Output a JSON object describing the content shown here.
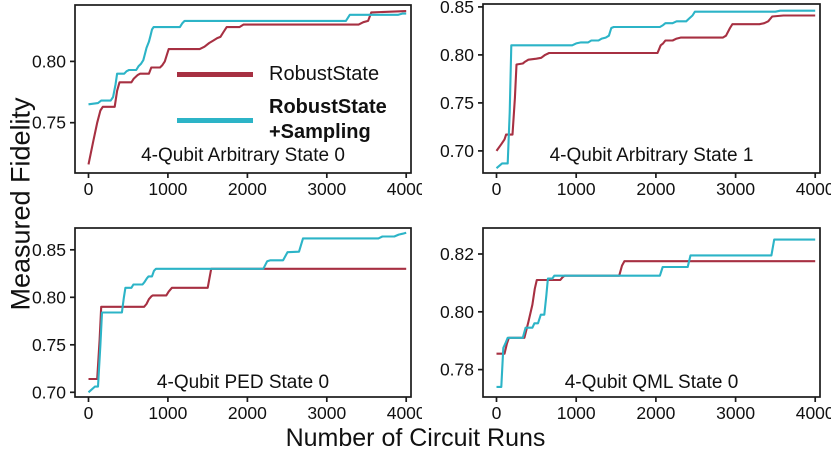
{
  "figure": {
    "ylabel": "Measured Fidelity",
    "xlabel": "Number of Circuit Runs"
  },
  "colors": {
    "axis": "#1a1a1a",
    "text": "#111111",
    "robust": "#a73042",
    "sampling": "#2cb4c7"
  },
  "legend": {
    "position": "inside top-left subplot",
    "entries": [
      {
        "label": "RobustState",
        "series": "robust",
        "bold": false
      },
      {
        "label_line1": "RobustState",
        "label_line2": "+Sampling",
        "series": "sampling",
        "bold": true
      }
    ]
  },
  "chart_data": [
    {
      "type": "line",
      "title": "4-Qubit Arbitrary State 0",
      "xlim": [
        -170,
        4060
      ],
      "ylim": [
        0.709,
        0.846
      ],
      "xticks": [
        0,
        1000,
        2000,
        3000,
        4000
      ],
      "yticks": [
        0.75,
        0.8
      ],
      "grid": false,
      "series": [
        {
          "name": "RobustState",
          "color": "robust",
          "points": [
            [
              0,
              0.716
            ],
            [
              60,
              0.735
            ],
            [
              110,
              0.75
            ],
            [
              150,
              0.76
            ],
            [
              180,
              0.763
            ],
            [
              330,
              0.763
            ],
            [
              360,
              0.776
            ],
            [
              390,
              0.783
            ],
            [
              540,
              0.783
            ],
            [
              570,
              0.786
            ],
            [
              620,
              0.789
            ],
            [
              650,
              0.79
            ],
            [
              760,
              0.79
            ],
            [
              790,
              0.795
            ],
            [
              900,
              0.795
            ],
            [
              930,
              0.797
            ],
            [
              960,
              0.8
            ],
            [
              990,
              0.806
            ],
            [
              1010,
              0.81
            ],
            [
              1400,
              0.81
            ],
            [
              1460,
              0.812
            ],
            [
              1520,
              0.815
            ],
            [
              1570,
              0.817
            ],
            [
              1620,
              0.819
            ],
            [
              1660,
              0.82
            ],
            [
              1700,
              0.824
            ],
            [
              1740,
              0.828
            ],
            [
              1900,
              0.828
            ],
            [
              1950,
              0.83
            ],
            [
              3400,
              0.83
            ],
            [
              3460,
              0.832
            ],
            [
              3520,
              0.833
            ],
            [
              3560,
              0.84
            ],
            [
              4000,
              0.841
            ]
          ]
        },
        {
          "name": "RobustState+Sampling",
          "color": "sampling",
          "points": [
            [
              0,
              0.765
            ],
            [
              120,
              0.766
            ],
            [
              160,
              0.768
            ],
            [
              280,
              0.768
            ],
            [
              310,
              0.771
            ],
            [
              340,
              0.781
            ],
            [
              360,
              0.79
            ],
            [
              450,
              0.79
            ],
            [
              480,
              0.792
            ],
            [
              510,
              0.793
            ],
            [
              600,
              0.793
            ],
            [
              630,
              0.796
            ],
            [
              660,
              0.798
            ],
            [
              690,
              0.801
            ],
            [
              710,
              0.806
            ],
            [
              730,
              0.811
            ],
            [
              760,
              0.816
            ],
            [
              780,
              0.821
            ],
            [
              800,
              0.826
            ],
            [
              820,
              0.828
            ],
            [
              1150,
              0.828
            ],
            [
              1180,
              0.831
            ],
            [
              1210,
              0.833
            ],
            [
              3240,
              0.833
            ],
            [
              3290,
              0.838
            ],
            [
              3900,
              0.838
            ],
            [
              3950,
              0.839
            ],
            [
              4000,
              0.839
            ]
          ]
        }
      ]
    },
    {
      "type": "line",
      "title": "4-Qubit Arbitrary State 1",
      "xlim": [
        -170,
        4060
      ],
      "ylim": [
        0.677,
        0.853
      ],
      "xticks": [
        0,
        1000,
        2000,
        3000,
        4000
      ],
      "yticks": [
        0.7,
        0.75,
        0.8,
        0.85
      ],
      "grid": false,
      "series": [
        {
          "name": "RobustState",
          "color": "robust",
          "points": [
            [
              0,
              0.7
            ],
            [
              60,
              0.707
            ],
            [
              100,
              0.712
            ],
            [
              120,
              0.717
            ],
            [
              200,
              0.717
            ],
            [
              230,
              0.755
            ],
            [
              250,
              0.79
            ],
            [
              330,
              0.791
            ],
            [
              360,
              0.793
            ],
            [
              400,
              0.795
            ],
            [
              500,
              0.796
            ],
            [
              560,
              0.797
            ],
            [
              610,
              0.8
            ],
            [
              660,
              0.802
            ],
            [
              2020,
              0.802
            ],
            [
              2060,
              0.81
            ],
            [
              2090,
              0.812
            ],
            [
              2120,
              0.815
            ],
            [
              2210,
              0.815
            ],
            [
              2260,
              0.817
            ],
            [
              2310,
              0.818
            ],
            [
              2840,
              0.818
            ],
            [
              2880,
              0.82
            ],
            [
              2930,
              0.828
            ],
            [
              2960,
              0.832
            ],
            [
              3300,
              0.832
            ],
            [
              3360,
              0.833
            ],
            [
              3410,
              0.835
            ],
            [
              3460,
              0.84
            ],
            [
              3600,
              0.841
            ],
            [
              4000,
              0.841
            ]
          ]
        },
        {
          "name": "RobustState+Sampling",
          "color": "sampling",
          "points": [
            [
              0,
              0.682
            ],
            [
              70,
              0.687
            ],
            [
              140,
              0.687
            ],
            [
              165,
              0.74
            ],
            [
              185,
              0.81
            ],
            [
              950,
              0.81
            ],
            [
              1000,
              0.812
            ],
            [
              1060,
              0.813
            ],
            [
              1150,
              0.813
            ],
            [
              1190,
              0.815
            ],
            [
              1280,
              0.815
            ],
            [
              1320,
              0.817
            ],
            [
              1370,
              0.818
            ],
            [
              1410,
              0.82
            ],
            [
              1440,
              0.828
            ],
            [
              1470,
              0.829
            ],
            [
              2050,
              0.829
            ],
            [
              2090,
              0.831
            ],
            [
              2120,
              0.833
            ],
            [
              2210,
              0.833
            ],
            [
              2260,
              0.835
            ],
            [
              2380,
              0.835
            ],
            [
              2420,
              0.838
            ],
            [
              2460,
              0.841
            ],
            [
              2490,
              0.845
            ],
            [
              3500,
              0.845
            ],
            [
              3560,
              0.846
            ],
            [
              4000,
              0.846
            ]
          ]
        }
      ]
    },
    {
      "type": "line",
      "title": "4-Qubit PED State 0",
      "xlim": [
        -170,
        4060
      ],
      "ylim": [
        0.695,
        0.873
      ],
      "xticks": [
        0,
        1000,
        2000,
        3000,
        4000
      ],
      "yticks": [
        0.7,
        0.75,
        0.8,
        0.85
      ],
      "grid": false,
      "series": [
        {
          "name": "RobustState",
          "color": "robust",
          "points": [
            [
              0,
              0.714
            ],
            [
              110,
              0.714
            ],
            [
              140,
              0.755
            ],
            [
              160,
              0.79
            ],
            [
              700,
              0.79
            ],
            [
              730,
              0.793
            ],
            [
              760,
              0.798
            ],
            [
              790,
              0.801
            ],
            [
              810,
              0.802
            ],
            [
              980,
              0.802
            ],
            [
              1010,
              0.806
            ],
            [
              1050,
              0.81
            ],
            [
              1500,
              0.81
            ],
            [
              1545,
              0.83
            ],
            [
              4000,
              0.83
            ]
          ]
        },
        {
          "name": "RobustState+Sampling",
          "color": "sampling",
          "points": [
            [
              0,
              0.7
            ],
            [
              80,
              0.706
            ],
            [
              120,
              0.706
            ],
            [
              150,
              0.75
            ],
            [
              170,
              0.784
            ],
            [
              420,
              0.784
            ],
            [
              445,
              0.8
            ],
            [
              465,
              0.81
            ],
            [
              540,
              0.81
            ],
            [
              565,
              0.8135
            ],
            [
              680,
              0.8135
            ],
            [
              705,
              0.816
            ],
            [
              735,
              0.82
            ],
            [
              755,
              0.822
            ],
            [
              800,
              0.822
            ],
            [
              825,
              0.828
            ],
            [
              850,
              0.83
            ],
            [
              2200,
              0.83
            ],
            [
              2250,
              0.838
            ],
            [
              2290,
              0.839
            ],
            [
              2450,
              0.839
            ],
            [
              2505,
              0.8475
            ],
            [
              2650,
              0.848
            ],
            [
              2700,
              0.862
            ],
            [
              3650,
              0.862
            ],
            [
              3700,
              0.864
            ],
            [
              3850,
              0.864
            ],
            [
              3905,
              0.866
            ],
            [
              3955,
              0.867
            ],
            [
              4000,
              0.868
            ]
          ]
        }
      ]
    },
    {
      "type": "line",
      "title": "4-Qubit QML State 0",
      "xlim": [
        -170,
        4060
      ],
      "ylim": [
        0.7705,
        0.829
      ],
      "xticks": [
        0,
        1000,
        2000,
        3000,
        4000
      ],
      "yticks": [
        0.78,
        0.8,
        0.82
      ],
      "grid": false,
      "series": [
        {
          "name": "RobustState",
          "color": "robust",
          "points": [
            [
              0,
              0.7855
            ],
            [
              100,
              0.7855
            ],
            [
              130,
              0.789
            ],
            [
              155,
              0.791
            ],
            [
              350,
              0.791
            ],
            [
              400,
              0.7965
            ],
            [
              450,
              0.8025
            ],
            [
              480,
              0.808
            ],
            [
              505,
              0.811
            ],
            [
              800,
              0.811
            ],
            [
              830,
              0.812
            ],
            [
              855,
              0.8125
            ],
            [
              1540,
              0.8125
            ],
            [
              1575,
              0.816
            ],
            [
              1605,
              0.8175
            ],
            [
              4000,
              0.8175
            ]
          ]
        },
        {
          "name": "RobustState+Sampling",
          "color": "sampling",
          "points": [
            [
              0,
              0.774
            ],
            [
              60,
              0.774
            ],
            [
              85,
              0.7875
            ],
            [
              110,
              0.789
            ],
            [
              140,
              0.791
            ],
            [
              330,
              0.791
            ],
            [
              365,
              0.7945
            ],
            [
              450,
              0.7945
            ],
            [
              475,
              0.796
            ],
            [
              520,
              0.796
            ],
            [
              555,
              0.799
            ],
            [
              600,
              0.799
            ],
            [
              625,
              0.8055
            ],
            [
              645,
              0.8115
            ],
            [
              700,
              0.8115
            ],
            [
              725,
              0.8125
            ],
            [
              2050,
              0.8125
            ],
            [
              2085,
              0.8155
            ],
            [
              2400,
              0.8155
            ],
            [
              2435,
              0.8195
            ],
            [
              3450,
              0.8195
            ],
            [
              3485,
              0.825
            ],
            [
              4000,
              0.825
            ]
          ]
        }
      ]
    }
  ]
}
